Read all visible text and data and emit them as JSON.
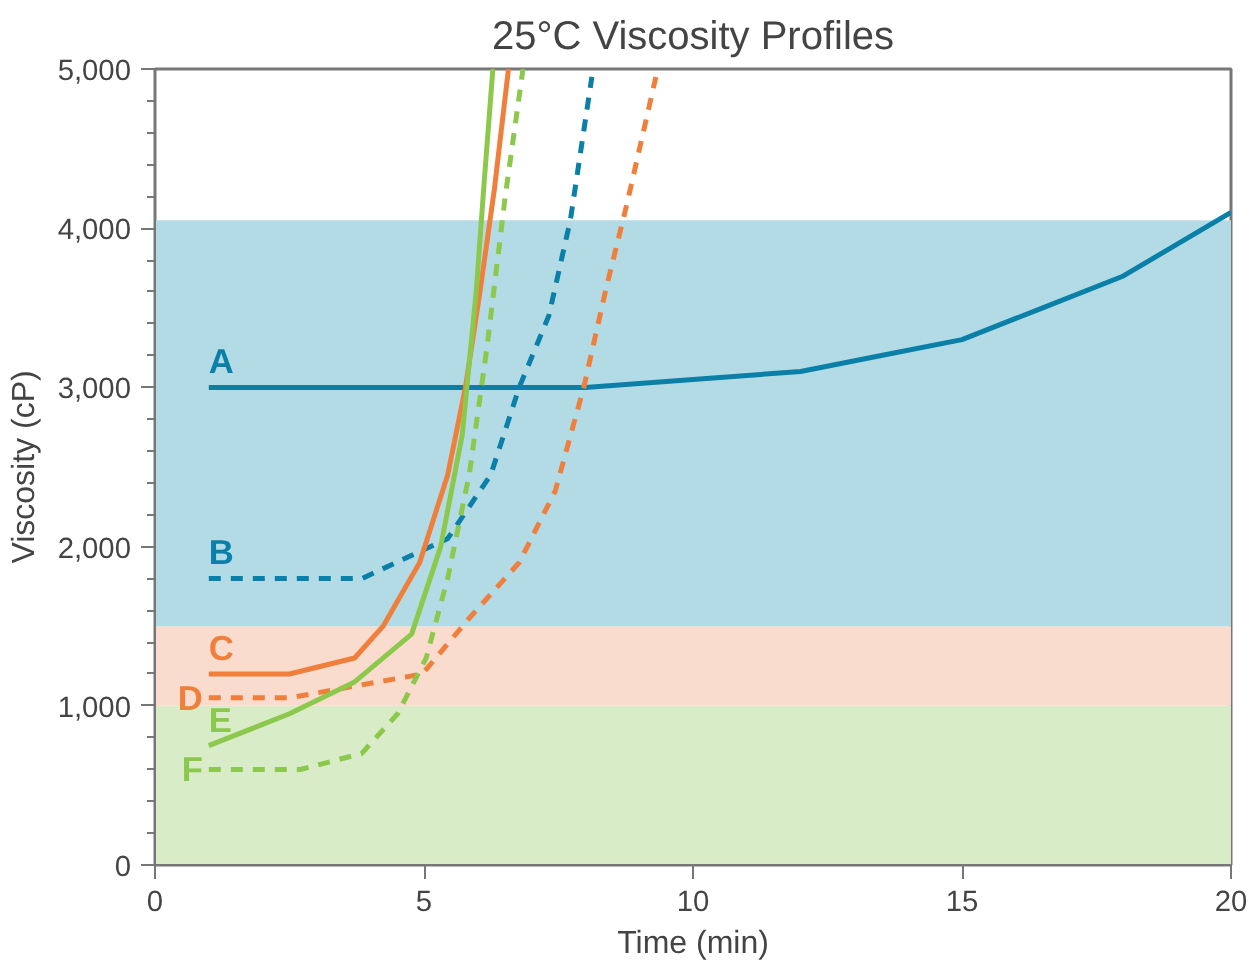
{
  "chart_data": {
    "type": "line",
    "title": "25°C Viscosity Profiles",
    "xlabel": "Time (min)",
    "ylabel": "Viscosity (cP)",
    "xlim": [
      0,
      20
    ],
    "xticks": [
      0,
      5,
      10,
      15,
      20
    ],
    "ylim": [
      0,
      5000
    ],
    "yticks": [
      0,
      {
        "value": 200,
        "label": null
      },
      {
        "value": 400,
        "label": null
      },
      {
        "value": 600,
        "label": null
      },
      {
        "value": 800,
        "label": null
      },
      {
        "value": 1000,
        "label": "1,000"
      },
      {
        "value": 1200,
        "label": null
      },
      {
        "value": 1400,
        "label": null
      },
      {
        "value": 1600,
        "label": null
      },
      {
        "value": 1800,
        "label": null
      },
      {
        "value": 2000,
        "label": "2,000"
      },
      {
        "value": 2200,
        "label": null
      },
      {
        "value": 2400,
        "label": null
      },
      {
        "value": 2600,
        "label": null
      },
      {
        "value": 2800,
        "label": null
      },
      {
        "value": 3000,
        "label": "3,000"
      },
      {
        "value": 3200,
        "label": null
      },
      {
        "value": 3400,
        "label": null
      },
      {
        "value": 3600,
        "label": null
      },
      {
        "value": 3800,
        "label": null
      },
      {
        "value": 4000,
        "label": "4,000"
      },
      {
        "value": 4200,
        "label": null
      },
      {
        "value": 4400,
        "label": null
      },
      {
        "value": 4600,
        "label": null
      },
      {
        "value": 4800,
        "label": null
      },
      {
        "value": 5000,
        "label": "5,000"
      }
    ],
    "grid": false,
    "bands": [
      {
        "axis": "y",
        "from": 0,
        "to": 1000,
        "color": "#d9ecc8"
      },
      {
        "axis": "y",
        "from": 1000,
        "to": 1500,
        "color": "#f9dccd"
      },
      {
        "axis": "y",
        "from": 1500,
        "to": 4050,
        "color": "#b3dbe6"
      }
    ],
    "series": [
      {
        "name": "A",
        "color": "#0a7fa8",
        "line_style": "solid",
        "x": [
          1,
          3,
          5,
          8,
          10,
          12,
          13.5,
          15,
          16.5,
          18,
          20
        ],
        "values": [
          3000,
          3000,
          3000,
          3000,
          3050,
          3100,
          3200,
          3300,
          3500,
          3700,
          4100
        ]
      },
      {
        "name": "B",
        "color": "#0a7fa8",
        "line_style": "dashed",
        "x": [
          1,
          2.5,
          3.85,
          5.44,
          6.24,
          6.77,
          7.32,
          7.72,
          8.12
        ],
        "values": [
          1800,
          1800,
          1800,
          2050,
          2450,
          3000,
          3450,
          4050,
          4950
        ]
      },
      {
        "name": "C",
        "color": "#f07f3c",
        "line_style": "solid",
        "x": [
          1,
          2.5,
          3.71,
          4.24,
          4.92,
          5.44,
          5.77,
          6.04,
          6.31,
          6.57
        ],
        "values": [
          1200,
          1200,
          1300,
          1500,
          1900,
          2450,
          3000,
          3600,
          4250,
          5000
        ]
      },
      {
        "name": "D",
        "color": "#f07f3c",
        "line_style": "dashed",
        "x": [
          1,
          2.5,
          4.97,
          5.84,
          6.77,
          7.44,
          7.97,
          8.37,
          8.77,
          9.31
        ],
        "values": [
          1050,
          1050,
          1200,
          1550,
          1900,
          2350,
          3000,
          3600,
          4150,
          4950
        ]
      },
      {
        "name": "E",
        "color": "#8cc84b",
        "line_style": "solid",
        "x": [
          1,
          2.5,
          3.71,
          4.77,
          5.31,
          5.71,
          5.97,
          6.11,
          6.28
        ],
        "values": [
          750,
          950,
          1150,
          1450,
          2000,
          2700,
          3600,
          4250,
          5000
        ]
      },
      {
        "name": "F",
        "color": "#8cc84b",
        "line_style": "dashed",
        "x": [
          1,
          2.7,
          3.84,
          4.51,
          5.04,
          5.44,
          5.84,
          6.17,
          6.51,
          6.84
        ],
        "values": [
          600,
          600,
          700,
          950,
          1300,
          1800,
          2450,
          3250,
          4200,
          5000
        ]
      }
    ]
  }
}
